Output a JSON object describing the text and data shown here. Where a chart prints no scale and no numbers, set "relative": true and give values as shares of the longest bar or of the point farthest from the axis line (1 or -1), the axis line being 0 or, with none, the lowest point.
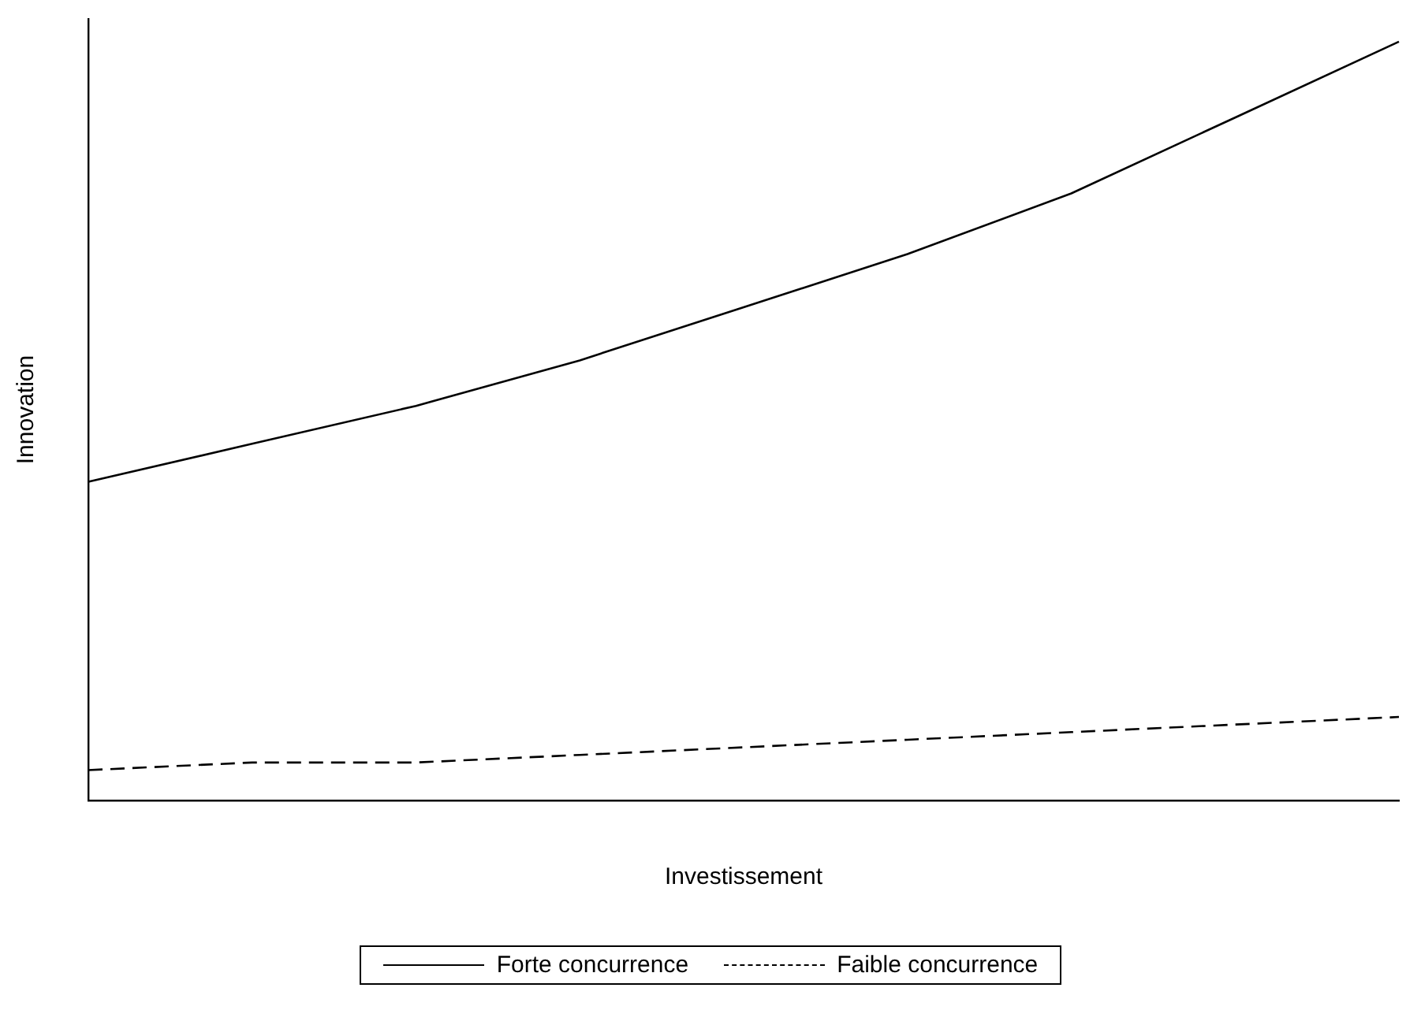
{
  "chart_data": {
    "type": "line",
    "relative": true,
    "xlabel": "Investissement",
    "ylabel": "Innovation",
    "categories": [
      null,
      null,
      null,
      null,
      null,
      null,
      null,
      null,
      null
    ],
    "series": [
      {
        "name": "Forte concurrence",
        "color": "#000000",
        "line_style": "solid",
        "values": [
          0.42,
          0.47,
          0.52,
          0.58,
          0.65,
          0.72,
          0.8,
          0.9,
          1
        ]
      },
      {
        "name": "Faible concurrence",
        "color": "#000000",
        "line_style": "dashed",
        "values": [
          0.04,
          0.05,
          0.05,
          0.06,
          0.07,
          0.08,
          0.09,
          0.1,
          0.11
        ]
      }
    ],
    "grid": false,
    "legend": "bottom",
    "marker": "none"
  }
}
